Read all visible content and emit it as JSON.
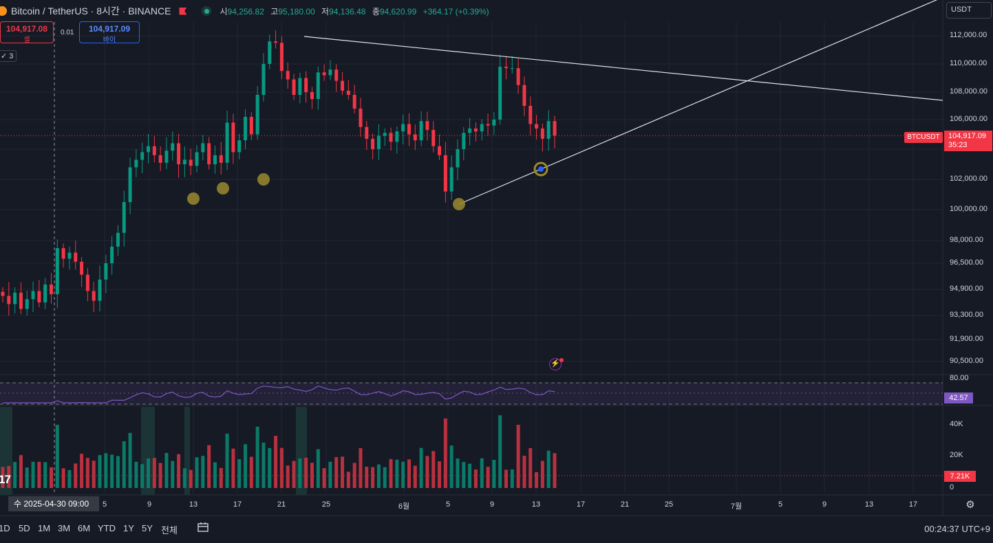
{
  "header": {
    "symbol_title": "Bitcoin / TetherUS · 8시간 · BINANCE",
    "ohlc": [
      {
        "label": "시",
        "value": "94,256.82"
      },
      {
        "label": "고",
        "value": "95,180.00"
      },
      {
        "label": "저",
        "value": "94,136.48"
      },
      {
        "label": "종",
        "value": "94,620.99"
      }
    ],
    "change": "+364.17 (+0.39%)"
  },
  "trade": {
    "sell_price": "104,917.08",
    "sell_label": "셀",
    "spread": "0.01",
    "buy_price": "104,917.09",
    "buy_label": "바이",
    "layers_count": "3"
  },
  "price_axis": {
    "currency": "USDT",
    "ticks": [
      "112,000.00",
      "110,000.00",
      "108,000.00",
      "106,000.00",
      "102,000.00",
      "100,000.00",
      "98,000.00",
      "96,500.00",
      "94,900.00",
      "93,300.00",
      "91,900.00",
      "90,500.00"
    ],
    "last_price": "104,917.09",
    "countdown": "35:23",
    "symbol_tag": "BTCUSDT"
  },
  "rsi": {
    "upper_label": "80.00",
    "value": "42.57"
  },
  "volume": {
    "ticks": [
      "40K",
      "20K",
      "0"
    ],
    "value": "7.21K",
    "legend_logo": "17"
  },
  "time_axis": {
    "crosshair_label": "수 2025-04-30   09:00",
    "ticks": [
      "5",
      "9",
      "13",
      "17",
      "21",
      "25",
      "6월",
      "5",
      "9",
      "13",
      "17",
      "21",
      "25",
      "7월",
      "5",
      "9",
      "13",
      "17"
    ]
  },
  "bottom_bar": {
    "timeframes": [
      "1D",
      "5D",
      "1M",
      "3M",
      "6M",
      "YTD",
      "1Y",
      "5Y",
      "전체"
    ],
    "clock": "00:24:37 UTC+9"
  },
  "colors": {
    "up": "#089981",
    "down": "#f23645",
    "rsi": "#7e57c2",
    "marker": "#9a8a2e"
  },
  "icons": [
    "coin-icon",
    "flag-icon",
    "live-icon",
    "lightning-alert-icon",
    "settings-icon",
    "calendar-range-icon"
  ],
  "chart_data": {
    "type": "candlestick",
    "symbol": "BTCUSDT",
    "interval": "8h",
    "ylim": [
      89500,
      113200
    ],
    "close_path": [
      94500,
      94000,
      94700,
      93700,
      94300,
      94800,
      94100,
      95200,
      94600,
      97500,
      96800,
      97200,
      96600,
      95800,
      94800,
      94200,
      95500,
      96500,
      97600,
      98500,
      100500,
      102800,
      103300,
      103800,
      104200,
      103600,
      103100,
      103900,
      104400,
      103000,
      103300,
      102900,
      103800,
      104400,
      103000,
      103600,
      103100,
      105800,
      103800,
      104600,
      106200,
      105000,
      107800,
      110000,
      111600,
      111500,
      109500,
      108900,
      107800,
      109000,
      108000,
      107500,
      109400,
      109200,
      109600,
      108800,
      108100,
      107800,
      106800,
      105500,
      104700,
      104000,
      104900,
      105100,
      104500,
      105200,
      105700,
      105000,
      104600,
      105900,
      105300,
      104200,
      103600,
      101200,
      102800,
      104000,
      105100,
      105400,
      105200,
      105700,
      105600,
      106000,
      109800,
      109700,
      109700,
      108500,
      107000,
      105700,
      105400,
      104700,
      105900,
      104917
    ]
  }
}
